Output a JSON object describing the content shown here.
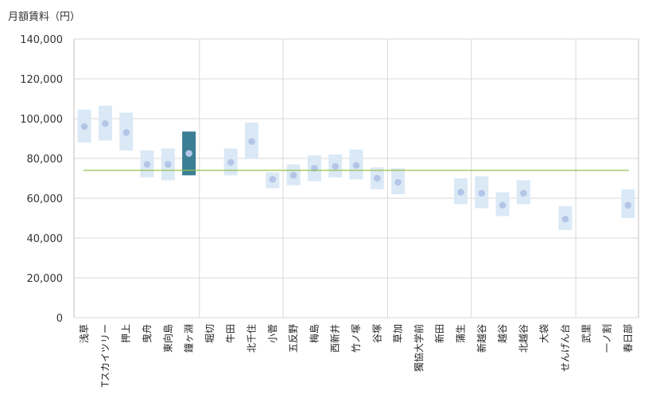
{
  "chart_data": {
    "type": "range-dot",
    "title": "月額賃料（円）",
    "ylabel": "月額賃料（円）",
    "ylim": [
      0,
      140000
    ],
    "yticks": [
      0,
      20000,
      40000,
      60000,
      80000,
      100000,
      120000,
      140000
    ],
    "ytick_labels": [
      "0",
      "20,000",
      "40,000",
      "60,000",
      "80,000",
      "100,000",
      "120,000",
      "140,000"
    ],
    "average_line": 74000,
    "highlight": "鐘ヶ淵",
    "group_boundaries_after": [
      "鐘ヶ淵",
      "小菅",
      "谷塚",
      "蒲生",
      "せんげん台"
    ],
    "categories": [
      "浅草",
      "Tスカイツリー",
      "押上",
      "曳舟",
      "東向島",
      "鐘ヶ淵",
      "堀切",
      "牛田",
      "北千住",
      "小菅",
      "五反野",
      "梅島",
      "西新井",
      "竹ノ塚",
      "谷塚",
      "草加",
      "獨協大学前",
      "新田",
      "蒲生",
      "新越谷",
      "越谷",
      "北越谷",
      "大袋",
      "せんげん台",
      "武里",
      "一ノ割",
      "春日部"
    ],
    "points": [
      {
        "name": "浅草",
        "low": 88000,
        "high": 104500,
        "mean": 96000
      },
      {
        "name": "Tスカイツリー",
        "low": 89000,
        "high": 106500,
        "mean": 97500
      },
      {
        "name": "押上",
        "low": 84000,
        "high": 103000,
        "mean": 93000
      },
      {
        "name": "曳舟",
        "low": 70500,
        "high": 84000,
        "mean": 77000
      },
      {
        "name": "東向島",
        "low": 69000,
        "high": 85000,
        "mean": 77000
      },
      {
        "name": "鐘ヶ淵",
        "low": 71500,
        "high": 93500,
        "mean": 82500
      },
      {
        "name": "堀切",
        "low": null,
        "high": null,
        "mean": null
      },
      {
        "name": "牛田",
        "low": 71500,
        "high": 85000,
        "mean": 78000
      },
      {
        "name": "北千住",
        "low": 80000,
        "high": 98000,
        "mean": 88500
      },
      {
        "name": "小菅",
        "low": 65000,
        "high": 73000,
        "mean": 69500
      },
      {
        "name": "五反野",
        "low": 66500,
        "high": 77000,
        "mean": 71500
      },
      {
        "name": "梅島",
        "low": 68500,
        "high": 81500,
        "mean": 75000
      },
      {
        "name": "西新井",
        "low": 70500,
        "high": 82000,
        "mean": 76000
      },
      {
        "name": "竹ノ塚",
        "low": 69500,
        "high": 84500,
        "mean": 76500
      },
      {
        "name": "谷塚",
        "low": 64500,
        "high": 75500,
        "mean": 70000
      },
      {
        "name": "草加",
        "low": 62000,
        "high": 75000,
        "mean": 68000
      },
      {
        "name": "獨協大学前",
        "low": null,
        "high": null,
        "mean": null
      },
      {
        "name": "新田",
        "low": null,
        "high": null,
        "mean": null
      },
      {
        "name": "蒲生",
        "low": 57000,
        "high": 70000,
        "mean": 63000
      },
      {
        "name": "新越谷",
        "low": 55000,
        "high": 71000,
        "mean": 62500
      },
      {
        "name": "越谷",
        "low": 51000,
        "high": 63000,
        "mean": 56500
      },
      {
        "name": "北越谷",
        "low": 57000,
        "high": 69000,
        "mean": 62500
      },
      {
        "name": "大袋",
        "low": null,
        "high": null,
        "mean": null
      },
      {
        "name": "せんげん台",
        "low": 44000,
        "high": 56000,
        "mean": 49500
      },
      {
        "name": "武里",
        "low": null,
        "high": null,
        "mean": null
      },
      {
        "name": "一ノ割",
        "low": null,
        "high": null,
        "mean": null
      },
      {
        "name": "春日部",
        "low": 50000,
        "high": 64500,
        "mean": 56500
      }
    ],
    "colors": {
      "range": "#dbe9f6",
      "dot": "#b4c6e7",
      "highlight_range": "#3b7f95",
      "highlight_dot": "#b4c6e7",
      "average": "#92c050",
      "grid": "#d9d9d9",
      "axis": "#bfbfbf"
    }
  }
}
